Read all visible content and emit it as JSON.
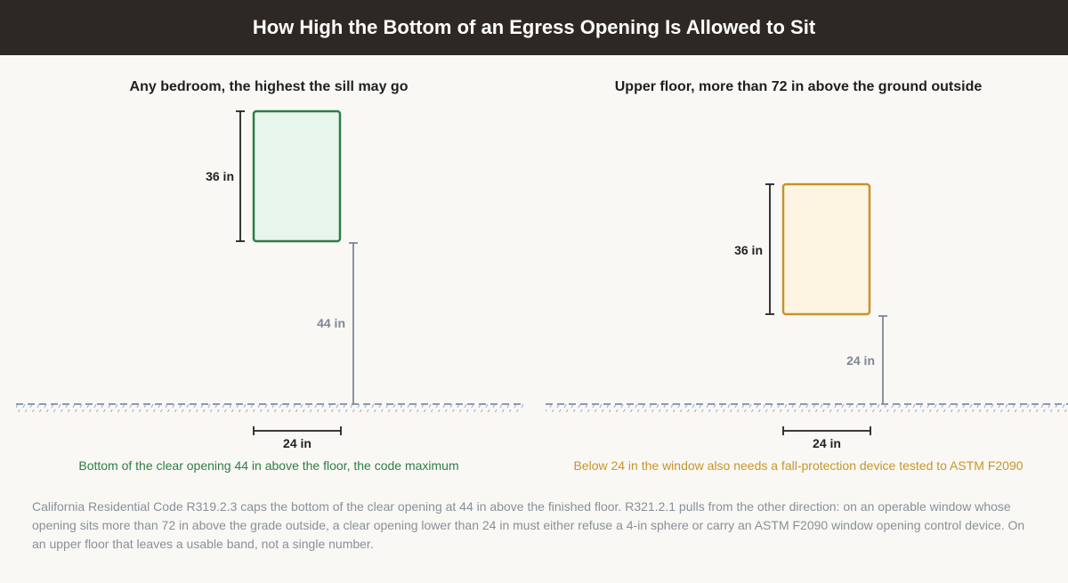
{
  "header": {
    "title": "How High the Bottom of an Egress Opening Is Allowed to Sit"
  },
  "panels": [
    {
      "title": "Any bedroom, the highest the sill may go",
      "height_label": "36 in",
      "sill_label": "44 in",
      "width_label": "24 in",
      "caption": "Bottom of the clear opening 44 in above the floor, the code maximum",
      "window_stroke": "#2e7d46",
      "window_fill": "#e7f5ec",
      "caption_color": "#2e7d46"
    },
    {
      "title": "Upper floor, more than 72 in above the ground outside",
      "height_label": "36 in",
      "sill_label": "24 in",
      "width_label": "24 in",
      "caption": "Below 24 in the window also needs a fall-protection device tested to ASTM F2090",
      "window_stroke": "#c8922a",
      "window_fill": "#fdf4e1",
      "caption_color": "#c8952a"
    }
  ],
  "footnote": "California Residential Code R319.2.3 caps the bottom of the clear opening at 44 in above the finished floor. R321.2.1 pulls from the other direction: on an operable window whose opening sits more than 72 in above the grade outside, a clear opening lower than 24 in must either refuse a 4-in sphere or carry an ASTM F2090 window opening control device. On an upper floor that leaves a usable band, not a single number.",
  "colors": {
    "ground": "#8a9bb5",
    "dimension_dark": "#222222",
    "dimension_grey": "#7f8796"
  }
}
